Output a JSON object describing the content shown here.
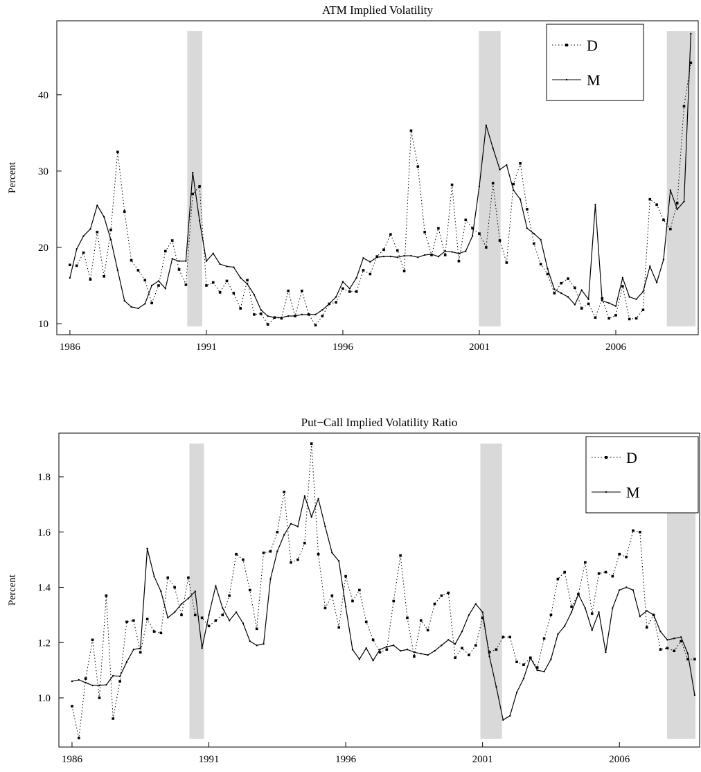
{
  "chart_data": [
    {
      "type": "line",
      "title": "ATM Implied Volatility",
      "y_label": "Percent",
      "x": [
        1986,
        1986.25,
        1986.5,
        1986.75,
        1987,
        1987.25,
        1987.5,
        1987.75,
        1988,
        1988.25,
        1988.5,
        1988.75,
        1989,
        1989.25,
        1989.5,
        1989.75,
        1990,
        1990.25,
        1990.5,
        1990.75,
        1991,
        1991.25,
        1991.5,
        1991.75,
        1992,
        1992.25,
        1992.5,
        1992.75,
        1993,
        1993.25,
        1993.5,
        1993.75,
        1994,
        1994.25,
        1994.5,
        1994.75,
        1995,
        1995.25,
        1995.5,
        1995.75,
        1996,
        1996.25,
        1996.5,
        1996.75,
        1997,
        1997.25,
        1997.5,
        1997.75,
        1998,
        1998.25,
        1998.5,
        1998.75,
        1999,
        1999.25,
        1999.5,
        1999.75,
        2000,
        2000.25,
        2000.5,
        2000.75,
        2001,
        2001.25,
        2001.5,
        2001.75,
        2002,
        2002.25,
        2002.5,
        2002.75,
        2003,
        2003.25,
        2003.5,
        2003.75,
        2004,
        2004.25,
        2004.5,
        2004.75,
        2005,
        2005.25,
        2005.5,
        2005.75,
        2006,
        2006.25,
        2006.5,
        2006.75,
        2007,
        2007.25,
        2007.5,
        2007.75,
        2008,
        2008.25,
        2008.5,
        2008.75
      ],
      "series": [
        {
          "name": "D",
          "color": "#000000",
          "linestyle": "dotted",
          "marker": "square",
          "values": [
            17.7,
            17.6,
            19.3,
            15.8,
            22,
            16.2,
            22.3,
            32.5,
            24.7,
            18.3,
            17,
            15.7,
            12.7,
            15,
            19.5,
            20.9,
            17.1,
            15.1,
            27,
            28,
            15,
            15.4,
            14.1,
            15.6,
            14,
            12,
            15.7,
            11.2,
            11.3,
            9.9,
            10.8,
            10.7,
            14.3,
            11,
            14.3,
            11.2,
            9.8,
            11,
            12.6,
            12.8,
            14.6,
            14.2,
            14.2,
            17,
            16.5,
            18.8,
            19.7,
            21.7,
            19.6,
            16.9,
            35.3,
            30.6,
            22,
            19,
            22.5,
            19,
            28.2,
            18.2,
            23.6,
            22.5,
            21.8,
            20,
            28.4,
            20.9,
            18,
            28.3,
            31,
            25,
            20.5,
            17.8,
            16.5,
            14,
            15.3,
            15.9,
            14.7,
            12,
            12.6,
            10.8,
            13.3,
            10.7,
            11.1,
            14.9,
            10.6,
            10.7,
            11.8,
            26.3,
            25.6,
            23.6,
            22.4,
            25.8,
            38.5,
            44.2
          ]
        },
        {
          "name": "M",
          "color": "#000000",
          "linestyle": "solid",
          "marker": "dot",
          "values": [
            16,
            19.8,
            21.5,
            22.4,
            25.5,
            24,
            21,
            17,
            13,
            12.2,
            12,
            12.6,
            15,
            15.6,
            14.6,
            18.5,
            18.2,
            18.2,
            29.8,
            23.5,
            18.2,
            19.2,
            17.8,
            17.5,
            17.4,
            16,
            15.2,
            13.8,
            11.8,
            11,
            10.8,
            10.8,
            11,
            11,
            11.2,
            11.2,
            11.2,
            11.8,
            12.6,
            13.5,
            15.5,
            14.6,
            16,
            18.6,
            18.1,
            18.7,
            18.8,
            18.8,
            18.7,
            18.9,
            18.9,
            18.7,
            19,
            19.1,
            18.8,
            19.5,
            19.4,
            19.2,
            19.5,
            21.5,
            28,
            36,
            33,
            30.2,
            30.8,
            27.5,
            26.3,
            22.5,
            21.8,
            21,
            17.2,
            14.5,
            14,
            13.5,
            12.5,
            14.4,
            13.2,
            25.6,
            13,
            12.7,
            12.3,
            16,
            13.5,
            13.2,
            14.2,
            17.5,
            15.4,
            18.4,
            27.5,
            25,
            26,
            48
          ]
        }
      ],
      "shaded_periods": [
        [
          1990.3,
          1990.85
        ],
        [
          2000.98,
          2001.78
        ],
        [
          2007.87,
          2008.92
        ]
      ],
      "shade_color": "#d9d9d9",
      "xlim": [
        1985.52,
        2009.02
      ],
      "ylim": [
        8.55,
        49.7
      ],
      "xticks": [
        1986,
        1991,
        1996,
        2001,
        2006
      ],
      "yticks": [
        10,
        20,
        30,
        40
      ],
      "grid": false,
      "legend": "upper right"
    },
    {
      "type": "line",
      "title": "Put−Call Implied Volatility Ratio",
      "y_label": "Percent",
      "x": [
        1986,
        1986.25,
        1986.5,
        1986.75,
        1987,
        1987.25,
        1987.5,
        1987.75,
        1988,
        1988.25,
        1988.5,
        1988.75,
        1989,
        1989.25,
        1989.5,
        1989.75,
        1990,
        1990.25,
        1990.5,
        1990.75,
        1991,
        1991.25,
        1991.5,
        1991.75,
        1992,
        1992.25,
        1992.5,
        1992.75,
        1993,
        1993.25,
        1993.5,
        1993.75,
        1994,
        1994.25,
        1994.5,
        1994.75,
        1995,
        1995.25,
        1995.5,
        1995.75,
        1996,
        1996.25,
        1996.5,
        1996.75,
        1997,
        1997.25,
        1997.5,
        1997.75,
        1998,
        1998.25,
        1998.5,
        1998.75,
        1999,
        1999.25,
        1999.5,
        1999.75,
        2000,
        2000.25,
        2000.5,
        2000.75,
        2001,
        2001.25,
        2001.5,
        2001.75,
        2002,
        2002.25,
        2002.5,
        2002.75,
        2003,
        2003.25,
        2003.5,
        2003.75,
        2004,
        2004.25,
        2004.5,
        2004.75,
        2005,
        2005.25,
        2005.5,
        2005.75,
        2006,
        2006.25,
        2006.5,
        2006.75,
        2007,
        2007.25,
        2007.5,
        2007.75,
        2008,
        2008.25,
        2008.5,
        2008.75
      ],
      "series": [
        {
          "name": "D",
          "color": "#000000",
          "linestyle": "dotted",
          "marker": "square",
          "values": [
            0.97,
            0.855,
            1.07,
            1.21,
            1.0,
            1.37,
            0.925,
            1.06,
            1.275,
            1.28,
            1.165,
            1.285,
            1.24,
            1.235,
            1.435,
            1.4,
            1.3,
            1.435,
            1.3,
            1.29,
            1.26,
            1.28,
            1.3,
            1.37,
            1.52,
            1.5,
            1.39,
            1.25,
            1.525,
            1.53,
            1.6,
            1.745,
            1.49,
            1.5,
            1.56,
            1.92,
            1.52,
            1.325,
            1.37,
            1.255,
            1.44,
            1.35,
            1.39,
            1.275,
            1.21,
            1.165,
            1.175,
            1.35,
            1.515,
            1.29,
            1.15,
            1.28,
            1.245,
            1.34,
            1.37,
            1.38,
            1.145,
            1.18,
            1.155,
            1.19,
            1.29,
            1.165,
            1.175,
            1.22,
            1.22,
            1.13,
            1.12,
            1.145,
            1.11,
            1.215,
            1.3,
            1.43,
            1.455,
            1.33,
            1.375,
            1.49,
            1.305,
            1.45,
            1.455,
            1.44,
            1.52,
            1.51,
            1.605,
            1.6,
            1.255,
            1.3,
            1.175,
            1.18,
            1.17,
            1.205,
            1.14,
            1.14
          ]
        },
        {
          "name": "M",
          "color": "#000000",
          "linestyle": "solid",
          "marker": "dot",
          "values": [
            1.06,
            1.065,
            1.055,
            1.045,
            1.045,
            1.047,
            1.08,
            1.078,
            1.13,
            1.175,
            1.18,
            1.54,
            1.44,
            1.385,
            1.29,
            1.31,
            1.34,
            1.36,
            1.385,
            1.18,
            1.3,
            1.405,
            1.325,
            1.28,
            1.31,
            1.27,
            1.205,
            1.19,
            1.195,
            1.43,
            1.53,
            1.59,
            1.63,
            1.62,
            1.73,
            1.655,
            1.72,
            1.62,
            1.525,
            1.495,
            1.33,
            1.175,
            1.14,
            1.18,
            1.135,
            1.175,
            1.185,
            1.19,
            1.17,
            1.175,
            1.165,
            1.16,
            1.155,
            1.17,
            1.19,
            1.21,
            1.195,
            1.24,
            1.3,
            1.34,
            1.31,
            1.15,
            1.04,
            0.92,
            0.935,
            1.02,
            1.07,
            1.145,
            1.1,
            1.095,
            1.14,
            1.23,
            1.26,
            1.31,
            1.375,
            1.325,
            1.245,
            1.31,
            1.165,
            1.325,
            1.39,
            1.4,
            1.39,
            1.295,
            1.315,
            1.3,
            1.24,
            1.21,
            1.215,
            1.22,
            1.16,
            1.01
          ]
        }
      ],
      "shaded_periods": [
        [
          1990.29,
          1990.82
        ],
        [
          2000.92,
          2001.71
        ],
        [
          2007.74,
          2008.78
        ]
      ],
      "shade_color": "#d9d9d9",
      "xlim": [
        1985.52,
        2008.93
      ],
      "ylim": [
        0.822,
        1.958
      ],
      "xticks": [
        1986,
        1991,
        1996,
        2001,
        2006
      ],
      "yticks": [
        {
          "value": 1,
          "label": "1.0"
        },
        1.2,
        1.4,
        1.6,
        1.8
      ],
      "grid": false,
      "legend": "upper right"
    }
  ]
}
